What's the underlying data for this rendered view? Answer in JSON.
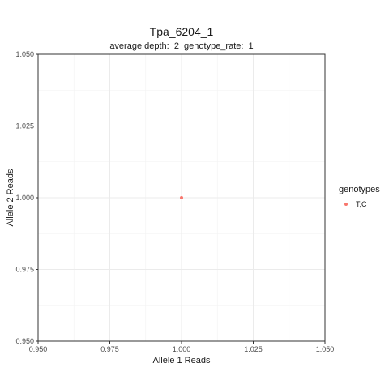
{
  "chart_data": {
    "type": "scatter",
    "title": "Tpa_6204_1",
    "subtitle": "average depth:  2  genotype_rate:  1",
    "xlabel": "Allele 1 Reads",
    "ylabel": "Allele 2 Reads",
    "xlim": [
      0.95,
      1.05
    ],
    "ylim": [
      0.95,
      1.05
    ],
    "x_ticks": [
      "0.950",
      "0.975",
      "1.000",
      "1.025",
      "1.050"
    ],
    "y_ticks": [
      "0.950",
      "0.975",
      "1.000",
      "1.025",
      "1.050"
    ],
    "grid": true,
    "legend": {
      "title": "genotypes",
      "placement": "right",
      "entries": [
        {
          "label": "T,C",
          "color": "#F8766D"
        }
      ]
    },
    "series": [
      {
        "name": "T,C",
        "color": "#F8766D",
        "points": [
          {
            "x": 1.0,
            "y": 1.0
          }
        ]
      }
    ]
  }
}
